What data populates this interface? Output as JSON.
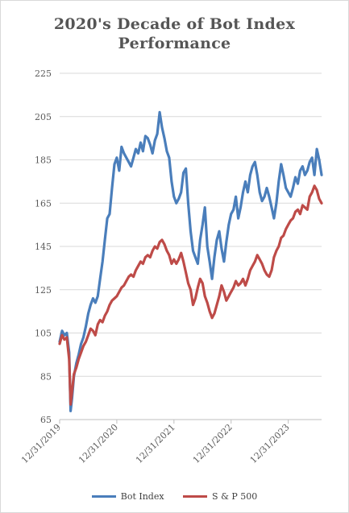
{
  "chart_data": {
    "type": "line",
    "title_line1": "2020's Decade of  Bot Index",
    "title_line2": "Performance",
    "xlabel": "",
    "ylabel": "",
    "ylim": [
      65,
      225
    ],
    "y_ticks": [
      65,
      85,
      105,
      125,
      145,
      165,
      185,
      205,
      225
    ],
    "x_tick_labels": [
      "12/31/2019",
      "12/31/2020",
      "12/31/2021",
      "12/31/2022",
      "12/31/2023"
    ],
    "x_tick_positions": [
      0,
      12,
      24,
      36,
      48
    ],
    "x_max": 55,
    "grid": "horizontal",
    "legend_position": "bottom",
    "series": [
      {
        "name": "Bot Index",
        "color": "#4a7ebb",
        "values": [
          [
            0,
            101
          ],
          [
            0.5,
            106
          ],
          [
            1,
            104
          ],
          [
            1.5,
            105
          ],
          [
            2,
            96
          ],
          [
            2.3,
            69
          ],
          [
            2.6,
            75
          ],
          [
            3,
            85
          ],
          [
            3.5,
            91
          ],
          [
            4,
            95
          ],
          [
            4.5,
            100
          ],
          [
            5,
            103
          ],
          [
            5.5,
            108
          ],
          [
            6,
            114
          ],
          [
            6.5,
            118
          ],
          [
            7,
            121
          ],
          [
            7.5,
            119
          ],
          [
            8,
            122
          ],
          [
            8.5,
            130
          ],
          [
            9,
            138
          ],
          [
            9.5,
            148
          ],
          [
            10,
            158
          ],
          [
            10.5,
            160
          ],
          [
            11,
            172
          ],
          [
            11.5,
            183
          ],
          [
            12,
            186
          ],
          [
            12.5,
            180
          ],
          [
            13,
            191
          ],
          [
            13.5,
            188
          ],
          [
            14,
            186
          ],
          [
            14.5,
            184
          ],
          [
            15,
            182
          ],
          [
            15.5,
            186
          ],
          [
            16,
            190
          ],
          [
            16.5,
            188
          ],
          [
            17,
            193
          ],
          [
            17.5,
            189
          ],
          [
            18,
            196
          ],
          [
            18.5,
            195
          ],
          [
            19,
            192
          ],
          [
            19.5,
            188
          ],
          [
            20,
            194
          ],
          [
            20.5,
            197
          ],
          [
            21,
            207
          ],
          [
            21.5,
            200
          ],
          [
            22,
            195
          ],
          [
            22.5,
            189
          ],
          [
            23,
            186
          ],
          [
            23.5,
            175
          ],
          [
            24,
            168
          ],
          [
            24.5,
            165
          ],
          [
            25,
            167
          ],
          [
            25.5,
            170
          ],
          [
            26,
            179
          ],
          [
            26.5,
            181
          ],
          [
            27,
            165
          ],
          [
            27.5,
            152
          ],
          [
            28,
            143
          ],
          [
            28.5,
            140
          ],
          [
            29,
            137
          ],
          [
            29.5,
            148
          ],
          [
            30,
            155
          ],
          [
            30.5,
            163
          ],
          [
            31,
            145
          ],
          [
            31.5,
            138
          ],
          [
            32,
            130
          ],
          [
            32.5,
            140
          ],
          [
            33,
            148
          ],
          [
            33.5,
            152
          ],
          [
            34,
            144
          ],
          [
            34.5,
            138
          ],
          [
            35,
            147
          ],
          [
            35.5,
            155
          ],
          [
            36,
            160
          ],
          [
            36.5,
            162
          ],
          [
            37,
            168
          ],
          [
            37.5,
            158
          ],
          [
            38,
            163
          ],
          [
            38.5,
            170
          ],
          [
            39,
            175
          ],
          [
            39.5,
            170
          ],
          [
            40,
            178
          ],
          [
            40.5,
            182
          ],
          [
            41,
            184
          ],
          [
            41.5,
            178
          ],
          [
            42,
            170
          ],
          [
            42.5,
            166
          ],
          [
            43,
            168
          ],
          [
            43.5,
            172
          ],
          [
            44,
            168
          ],
          [
            44.5,
            163
          ],
          [
            45,
            158
          ],
          [
            45.5,
            165
          ],
          [
            46,
            175
          ],
          [
            46.5,
            183
          ],
          [
            47,
            178
          ],
          [
            47.5,
            172
          ],
          [
            48,
            170
          ],
          [
            48.5,
            168
          ],
          [
            49,
            172
          ],
          [
            49.5,
            177
          ],
          [
            50,
            174
          ],
          [
            50.5,
            180
          ],
          [
            51,
            182
          ],
          [
            51.5,
            178
          ],
          [
            52,
            180
          ],
          [
            52.5,
            184
          ],
          [
            53,
            186
          ],
          [
            53.5,
            178
          ],
          [
            54,
            190
          ],
          [
            54.5,
            185
          ],
          [
            55,
            178
          ]
        ]
      },
      {
        "name": "S & P 500",
        "color": "#be4b48",
        "values": [
          [
            0,
            100
          ],
          [
            0.5,
            104
          ],
          [
            1,
            102
          ],
          [
            1.5,
            103
          ],
          [
            2,
            93
          ],
          [
            2.3,
            72
          ],
          [
            2.6,
            78
          ],
          [
            3,
            86
          ],
          [
            3.5,
            89
          ],
          [
            4,
            93
          ],
          [
            4.5,
            96
          ],
          [
            5,
            99
          ],
          [
            5.5,
            101
          ],
          [
            6,
            104
          ],
          [
            6.5,
            107
          ],
          [
            7,
            106
          ],
          [
            7.5,
            104
          ],
          [
            8,
            109
          ],
          [
            8.5,
            111
          ],
          [
            9,
            110
          ],
          [
            9.5,
            113
          ],
          [
            10,
            115
          ],
          [
            10.5,
            118
          ],
          [
            11,
            120
          ],
          [
            11.5,
            121
          ],
          [
            12,
            122
          ],
          [
            12.5,
            124
          ],
          [
            13,
            126
          ],
          [
            13.5,
            127
          ],
          [
            14,
            129
          ],
          [
            14.5,
            131
          ],
          [
            15,
            132
          ],
          [
            15.5,
            131
          ],
          [
            16,
            134
          ],
          [
            16.5,
            136
          ],
          [
            17,
            138
          ],
          [
            17.5,
            137
          ],
          [
            18,
            140
          ],
          [
            18.5,
            141
          ],
          [
            19,
            140
          ],
          [
            19.5,
            143
          ],
          [
            20,
            145
          ],
          [
            20.5,
            144
          ],
          [
            21,
            147
          ],
          [
            21.5,
            148
          ],
          [
            22,
            146
          ],
          [
            22.5,
            143
          ],
          [
            23,
            141
          ],
          [
            23.5,
            137
          ],
          [
            24,
            139
          ],
          [
            24.5,
            137
          ],
          [
            25,
            139
          ],
          [
            25.5,
            142
          ],
          [
            26,
            138
          ],
          [
            26.5,
            133
          ],
          [
            27,
            128
          ],
          [
            27.5,
            125
          ],
          [
            28,
            118
          ],
          [
            28.5,
            121
          ],
          [
            29,
            126
          ],
          [
            29.5,
            130
          ],
          [
            30,
            128
          ],
          [
            30.5,
            122
          ],
          [
            31,
            119
          ],
          [
            31.5,
            115
          ],
          [
            32,
            112
          ],
          [
            32.5,
            114
          ],
          [
            33,
            118
          ],
          [
            33.5,
            122
          ],
          [
            34,
            127
          ],
          [
            34.5,
            124
          ],
          [
            35,
            120
          ],
          [
            35.5,
            122
          ],
          [
            36,
            124
          ],
          [
            36.5,
            126
          ],
          [
            37,
            129
          ],
          [
            37.5,
            127
          ],
          [
            38,
            128
          ],
          [
            38.5,
            130
          ],
          [
            39,
            127
          ],
          [
            39.5,
            130
          ],
          [
            40,
            134
          ],
          [
            40.5,
            136
          ],
          [
            41,
            138
          ],
          [
            41.5,
            141
          ],
          [
            42,
            139
          ],
          [
            42.5,
            137
          ],
          [
            43,
            134
          ],
          [
            43.5,
            132
          ],
          [
            44,
            131
          ],
          [
            44.5,
            134
          ],
          [
            45,
            140
          ],
          [
            45.5,
            143
          ],
          [
            46,
            145
          ],
          [
            46.5,
            149
          ],
          [
            47,
            150
          ],
          [
            47.5,
            153
          ],
          [
            48,
            155
          ],
          [
            48.5,
            157
          ],
          [
            49,
            158
          ],
          [
            49.5,
            161
          ],
          [
            50,
            162
          ],
          [
            50.5,
            160
          ],
          [
            51,
            164
          ],
          [
            51.5,
            163
          ],
          [
            52,
            162
          ],
          [
            52.5,
            168
          ],
          [
            53,
            170
          ],
          [
            53.5,
            173
          ],
          [
            54,
            171
          ],
          [
            54.5,
            167
          ],
          [
            55,
            165
          ]
        ]
      }
    ]
  }
}
